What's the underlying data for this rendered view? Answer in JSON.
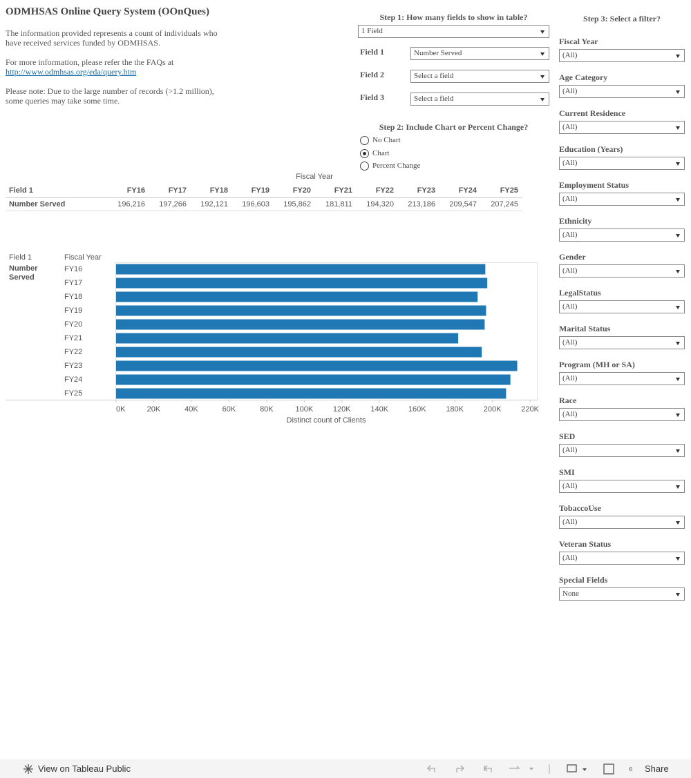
{
  "header": {
    "title": "ODMHSAS Online Query System (OOnQues)",
    "intro": "The information provided represents a count of individuals who have received services funded by ODMHSAS.",
    "faq": "For more information, please refer the the FAQs at",
    "link": "http://www.odmhsas.org/eda/query.htm",
    "note": "Please note: Due to the large number of records (>1.2 million), some queries may take some time."
  },
  "step1": {
    "title": "Step 1: How many fields to show in table?",
    "count": "1 Field",
    "fields": [
      {
        "label": "Field 1",
        "value": "Number Served"
      },
      {
        "label": "Field 2",
        "value": "Select a field"
      },
      {
        "label": "Field 3",
        "value": "Select a field"
      }
    ]
  },
  "step2": {
    "title": "Step 2: Include Chart or Percent Change?",
    "options": [
      "No Chart",
      "Chart",
      "Percent Change"
    ],
    "selected": 1
  },
  "step3": {
    "title": "Step 3: Select a filter?",
    "filters": [
      {
        "label": "Fiscal Year",
        "value": "(All)"
      },
      {
        "label": "Age Category",
        "value": "(All)"
      },
      {
        "label": "Current Residence",
        "value": "(All)"
      },
      {
        "label": "Education (Years)",
        "value": "(All)"
      },
      {
        "label": "Employment Status",
        "value": "(All)"
      },
      {
        "label": "Ethnicity",
        "value": "(All)"
      },
      {
        "label": "Gender",
        "value": "(All)"
      },
      {
        "label": "LegalStatus",
        "value": "(All)"
      },
      {
        "label": "Marital Status",
        "value": "(All)"
      },
      {
        "label": "Program (MH or SA)",
        "value": "(All)"
      },
      {
        "label": "Race",
        "value": "(All)"
      },
      {
        "label": "SED",
        "value": "(All)"
      },
      {
        "label": "SMI",
        "value": "(All)"
      },
      {
        "label": "TobaccoUse",
        "value": "(All)"
      },
      {
        "label": "Veteran Status",
        "value": "(All)"
      },
      {
        "label": "Special Fields",
        "value": "None"
      }
    ]
  },
  "table": {
    "column_group": "Fiscal Year",
    "columns": [
      "Field 1",
      "FY16",
      "FY17",
      "FY18",
      "FY19",
      "FY20",
      "FY21",
      "FY22",
      "FY23",
      "FY24",
      "FY25"
    ],
    "rows": [
      [
        "Number Served",
        "196,216",
        "197,266",
        "192,121",
        "196,603",
        "195,862",
        "181,811",
        "194,320",
        "213,186",
        "209,547",
        "207,245"
      ]
    ]
  },
  "chart_data": {
    "type": "bar",
    "row_header": "Field 1",
    "column_header": "Fiscal Year",
    "row_label": "Number Served",
    "categories": [
      "FY16",
      "FY17",
      "FY18",
      "FY19",
      "FY20",
      "FY21",
      "FY22",
      "FY23",
      "FY24",
      "FY25"
    ],
    "values": [
      196216,
      197266,
      192121,
      196603,
      195862,
      181811,
      194320,
      213186,
      209547,
      207245
    ],
    "color": "#1f77b4",
    "xlim": [
      0,
      224000
    ],
    "xticks": [
      {
        "value": 0,
        "label": "0K"
      },
      {
        "value": 20000,
        "label": "20K"
      },
      {
        "value": 40000,
        "label": "40K"
      },
      {
        "value": 60000,
        "label": "60K"
      },
      {
        "value": 80000,
        "label": "80K"
      },
      {
        "value": 100000,
        "label": "100K"
      },
      {
        "value": 120000,
        "label": "120K"
      },
      {
        "value": 140000,
        "label": "140K"
      },
      {
        "value": 160000,
        "label": "160K"
      },
      {
        "value": 180000,
        "label": "180K"
      },
      {
        "value": 200000,
        "label": "200K"
      },
      {
        "value": 220000,
        "label": "220K"
      }
    ],
    "xlabel": "Distinct count of Clients"
  },
  "toolbar": {
    "view": "View on Tableau Public",
    "share": "Share"
  }
}
